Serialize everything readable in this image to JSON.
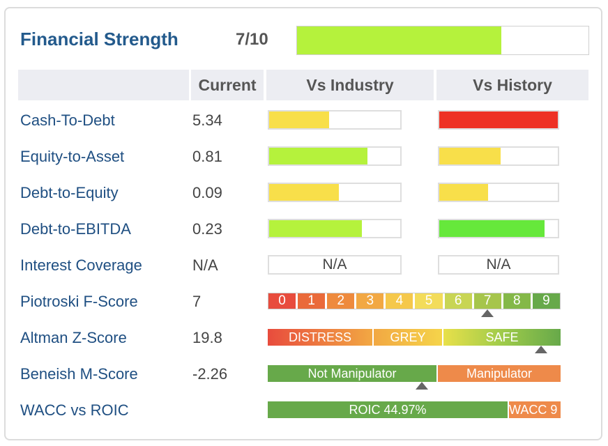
{
  "header": {
    "title": "Financial Strength",
    "score_text": "7/10",
    "score_fill": 0.7,
    "bar_color": "#b5f23c"
  },
  "columns": {
    "current": "Current",
    "vs_industry": "Vs Industry",
    "vs_history": "Vs History"
  },
  "rows": [
    {
      "label": "Cash-To-Debt",
      "value": "5.34",
      "industry": {
        "fill": 0.46,
        "color": "#f8df4a"
      },
      "history": {
        "fill": 1.0,
        "color": "#ee3124"
      }
    },
    {
      "label": "Equity-to-Asset",
      "value": "0.81",
      "industry": {
        "fill": 0.75,
        "color": "#b5f23c"
      },
      "history": {
        "fill": 0.52,
        "color": "#f8df4a"
      }
    },
    {
      "label": "Debt-to-Equity",
      "value": "0.09",
      "industry": {
        "fill": 0.53,
        "color": "#f8df4a"
      },
      "history": {
        "fill": 0.41,
        "color": "#f8df4a"
      }
    },
    {
      "label": "Debt-to-EBITDA",
      "value": "0.23",
      "industry": {
        "fill": 0.71,
        "color": "#b5f23c"
      },
      "history": {
        "fill": 0.89,
        "color": "#66e83b"
      }
    },
    {
      "label": "Interest Coverage",
      "value": "N/A",
      "industry_text": "N/A",
      "history_text": "N/A"
    },
    {
      "label": "Piotroski F-Score",
      "value": "7"
    },
    {
      "label": "Altman Z-Score",
      "value": "19.8"
    },
    {
      "label": "Beneish M-Score",
      "value": "-2.26"
    },
    {
      "label": "WACC vs ROIC",
      "value": ""
    }
  ],
  "piotroski": {
    "cells": [
      "0",
      "1",
      "2",
      "3",
      "4",
      "5",
      "6",
      "7",
      "8",
      "9"
    ],
    "colors": [
      "#e84c3d",
      "#ea6a3a",
      "#ee8a3d",
      "#f2a843",
      "#f5c84b",
      "#f3dc5a",
      "#c8d554",
      "#a6c54c",
      "#84b848",
      "#67a94a"
    ],
    "marker": 7
  },
  "altman": {
    "segments": [
      "DISTRESS",
      "GREY",
      "SAFE"
    ],
    "marker": 19.8
  },
  "beneish": {
    "segments": [
      "Not Manipulator",
      "Manipulator"
    ],
    "marker": -2.26
  },
  "wacc_roic": {
    "roic_label": "ROIC 44.97%",
    "wacc_label": "WACC 9"
  }
}
